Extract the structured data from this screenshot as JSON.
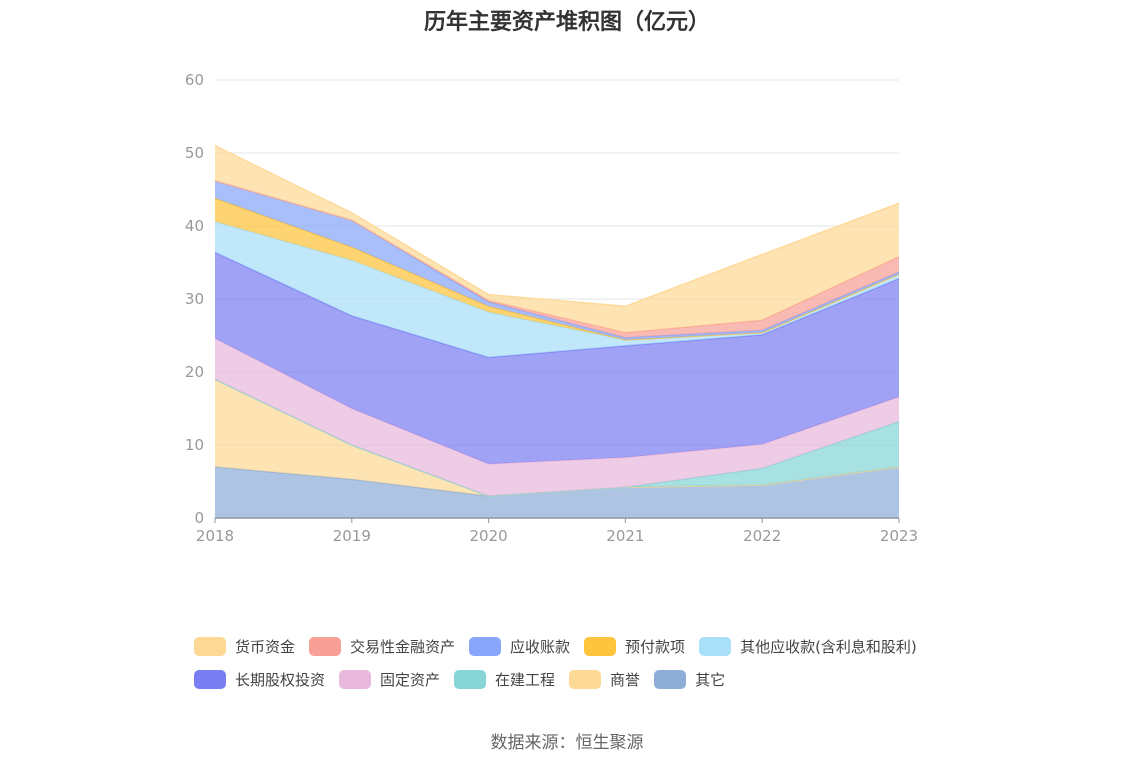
{
  "title": "历年主要资产堆积图（亿元）",
  "source": "数据来源：恒生聚源",
  "legend_rows": [
    [
      0,
      1,
      2,
      3,
      4
    ],
    [
      5,
      6,
      7,
      8,
      9
    ]
  ],
  "chart_data": {
    "type": "area",
    "stacked": true,
    "categories": [
      "2018",
      "2019",
      "2020",
      "2021",
      "2022",
      "2023"
    ],
    "ylim": [
      0,
      60
    ],
    "yticks": [
      "0",
      "10",
      "20",
      "30",
      "40",
      "50",
      "60"
    ],
    "grid": true,
    "legend_position": "bottom",
    "series": [
      {
        "name": "其它",
        "color": "#8eaed8",
        "values": [
          7.0,
          5.3,
          3.0,
          4.2,
          4.5,
          7.0
        ]
      },
      {
        "name": "商誉",
        "color": "#fed895",
        "values": [
          12.0,
          4.7,
          0.0,
          0.0,
          0.0,
          0.0
        ]
      },
      {
        "name": "在建工程",
        "color": "#87d5d5",
        "values": [
          0.0,
          0.0,
          0.0,
          0.0,
          2.3,
          6.2
        ]
      },
      {
        "name": "固定资产",
        "color": "#e8b9dc",
        "values": [
          5.6,
          5.0,
          4.4,
          4.1,
          3.3,
          3.4
        ]
      },
      {
        "name": "长期股权投资",
        "color": "#7b7ef3",
        "values": [
          11.8,
          12.7,
          14.6,
          15.3,
          15.0,
          16.2
        ]
      },
      {
        "name": "其他应收款(含利息和股利)",
        "color": "#a9dff8",
        "values": [
          4.2,
          7.6,
          6.2,
          0.8,
          0.3,
          0.6
        ]
      },
      {
        "name": "预付款项",
        "color": "#fdc43c",
        "values": [
          3.2,
          1.8,
          0.8,
          0.0,
          0.0,
          0.0
        ]
      },
      {
        "name": "应收账款",
        "color": "#88a6fb",
        "values": [
          2.4,
          3.7,
          0.6,
          0.3,
          0.3,
          0.3
        ]
      },
      {
        "name": "交易性金融资产",
        "color": "#f8a097",
        "values": [
          0.0,
          0.0,
          0.2,
          0.7,
          1.4,
          2.1
        ]
      },
      {
        "name": "货币资金",
        "color": "#fed895",
        "values": [
          4.8,
          1.0,
          0.8,
          3.6,
          9.0,
          7.3
        ]
      }
    ],
    "legend_order": [
      "货币资金",
      "交易性金融资产",
      "应收账款",
      "预付款项",
      "其他应收款(含利息和股利)",
      "长期股权投资",
      "固定资产",
      "在建工程",
      "商誉",
      "其它"
    ]
  }
}
